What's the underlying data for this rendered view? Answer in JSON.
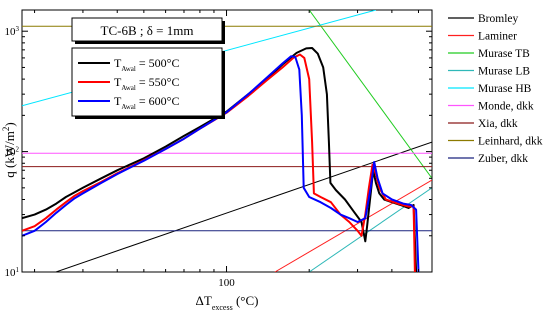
{
  "chart_data": {
    "type": "line",
    "xscale": "log",
    "yscale": "log",
    "xlim": [
      18,
      560
    ],
    "ylim": [
      10,
      1500
    ],
    "xlabel": "ΔT",
    "xlabel_sub": "excess",
    "xlabel_unit": " (°C)",
    "ylabel": "q (kW/m",
    "ylabel_sup": "2",
    "ylabel_close": ")",
    "x_ticks": [
      {
        "value": 100,
        "label": "100"
      }
    ],
    "y_ticks": [
      {
        "value": 10,
        "label": "10",
        "sup": "1"
      },
      {
        "value": 100,
        "label": "10",
        "sup": "2"
      },
      {
        "value": 1000,
        "label": "10",
        "sup": "3"
      }
    ],
    "title_box": "TC-6B ; δ = 1mm",
    "legend_inner": {
      "placement": "upper-left",
      "entries": [
        {
          "prefix": "T",
          "sub": "Awal",
          "suffix": " = 500°C",
          "color": "#000000"
        },
        {
          "prefix": "T",
          "sub": "Awal",
          "suffix": " = 550°C",
          "color": "#ff0000"
        },
        {
          "prefix": "T",
          "sub": "Awal",
          "suffix": " = 600°C",
          "color": "#0000ff"
        }
      ]
    },
    "legend_outer": [
      {
        "label": "Bromley",
        "color": "#000000"
      },
      {
        "label": "Laminer",
        "color": "#ff2020"
      },
      {
        "label": "Murase TB",
        "color": "#22cc22"
      },
      {
        "label": "Murase LB",
        "color": "#2fb8b8"
      },
      {
        "label": "Murase HB",
        "color": "#00e6ff"
      },
      {
        "label": "Monde, dkk",
        "color": "#ff55ff"
      },
      {
        "label": "Xia, dkk",
        "color": "#8b1a1a"
      },
      {
        "label": "Leinhard, dkk",
        "color": "#8c7a00"
      },
      {
        "label": "Zuber, dkk",
        "color": "#1a237e"
      }
    ],
    "correlations": [
      {
        "name": "Bromley",
        "color": "#000000",
        "points": [
          [
            18,
            8
          ],
          [
            560,
            120
          ]
        ]
      },
      {
        "name": "Laminer",
        "color": "#ff2020",
        "points": [
          [
            150,
            10
          ],
          [
            560,
            58
          ]
        ]
      },
      {
        "name": "Murase TB",
        "color": "#22cc22",
        "points": [
          [
            200,
            1500
          ],
          [
            560,
            60
          ]
        ]
      },
      {
        "name": "Murase LB",
        "color": "#2fb8b8",
        "points": [
          [
            200,
            10
          ],
          [
            560,
            50
          ]
        ]
      },
      {
        "name": "Murase HB",
        "color": "#00e6ff",
        "points": [
          [
            18,
            240
          ],
          [
            350,
            1500
          ]
        ]
      },
      {
        "name": "Monde, dkk",
        "color": "#ff55ff",
        "points": [
          [
            18,
            97
          ],
          [
            560,
            97
          ]
        ]
      },
      {
        "name": "Xia, dkk",
        "color": "#8b1a1a",
        "points": [
          [
            18,
            75
          ],
          [
            560,
            75
          ]
        ]
      },
      {
        "name": "Leinhard, dkk",
        "color": "#8c7a00",
        "points": [
          [
            18,
            1100
          ],
          [
            560,
            1100
          ]
        ]
      },
      {
        "name": "Zuber, dkk",
        "color": "#1a237e",
        "points": [
          [
            18,
            22
          ],
          [
            560,
            22
          ]
        ]
      }
    ],
    "series": [
      {
        "name": "T_Awal = 500°C",
        "color": "#000000",
        "points": [
          [
            18,
            28
          ],
          [
            20,
            30
          ],
          [
            22,
            33
          ],
          [
            24,
            37
          ],
          [
            26,
            42
          ],
          [
            28,
            46
          ],
          [
            30,
            50
          ],
          [
            35,
            60
          ],
          [
            40,
            70
          ],
          [
            50,
            88
          ],
          [
            60,
            110
          ],
          [
            70,
            135
          ],
          [
            80,
            160
          ],
          [
            100,
            215
          ],
          [
            120,
            300
          ],
          [
            140,
            400
          ],
          [
            160,
            530
          ],
          [
            180,
            660
          ],
          [
            195,
            720
          ],
          [
            205,
            725
          ],
          [
            215,
            650
          ],
          [
            225,
            500
          ],
          [
            232,
            300
          ],
          [
            236,
            120
          ],
          [
            239,
            55
          ],
          [
            250,
            48
          ],
          [
            270,
            40
          ],
          [
            290,
            32
          ],
          [
            310,
            26
          ],
          [
            320,
            18
          ],
          [
            325,
            24
          ],
          [
            335,
            45
          ],
          [
            342,
            70
          ],
          [
            350,
            55
          ],
          [
            360,
            45
          ],
          [
            375,
            40
          ],
          [
            400,
            38
          ],
          [
            430,
            36
          ],
          [
            460,
            34
          ],
          [
            480,
            36
          ],
          [
            490,
            10
          ]
        ]
      },
      {
        "name": "T_Awal = 550°C",
        "color": "#ff0000",
        "points": [
          [
            18,
            22
          ],
          [
            20,
            24
          ],
          [
            22,
            28
          ],
          [
            24,
            33
          ],
          [
            26,
            38
          ],
          [
            28,
            43
          ],
          [
            30,
            47
          ],
          [
            35,
            56
          ],
          [
            40,
            66
          ],
          [
            50,
            85
          ],
          [
            60,
            105
          ],
          [
            70,
            128
          ],
          [
            80,
            155
          ],
          [
            100,
            210
          ],
          [
            120,
            290
          ],
          [
            140,
            390
          ],
          [
            160,
            500
          ],
          [
            175,
            600
          ],
          [
            185,
            640
          ],
          [
            192,
            600
          ],
          [
            200,
            400
          ],
          [
            205,
            120
          ],
          [
            208,
            45
          ],
          [
            220,
            42
          ],
          [
            240,
            38
          ],
          [
            260,
            30
          ],
          [
            280,
            26
          ],
          [
            300,
            22
          ],
          [
            310,
            20
          ],
          [
            320,
            30
          ],
          [
            330,
            50
          ],
          [
            340,
            78
          ],
          [
            350,
            65
          ],
          [
            360,
            50
          ],
          [
            380,
            40
          ],
          [
            420,
            37
          ],
          [
            460,
            35
          ],
          [
            480,
            35
          ],
          [
            485,
            10
          ]
        ]
      },
      {
        "name": "T_Awal = 600°C",
        "color": "#0000ff",
        "points": [
          [
            18,
            20
          ],
          [
            20,
            22
          ],
          [
            22,
            26
          ],
          [
            24,
            31
          ],
          [
            26,
            36
          ],
          [
            28,
            41
          ],
          [
            30,
            45
          ],
          [
            35,
            55
          ],
          [
            40,
            65
          ],
          [
            50,
            84
          ],
          [
            60,
            105
          ],
          [
            70,
            128
          ],
          [
            80,
            155
          ],
          [
            100,
            212
          ],
          [
            120,
            300
          ],
          [
            140,
            410
          ],
          [
            160,
            540
          ],
          [
            172,
            620
          ],
          [
            178,
            610
          ],
          [
            184,
            480
          ],
          [
            188,
            200
          ],
          [
            191,
            50
          ],
          [
            200,
            42
          ],
          [
            220,
            38
          ],
          [
            240,
            34
          ],
          [
            260,
            30
          ],
          [
            280,
            28
          ],
          [
            300,
            26
          ],
          [
            320,
            28
          ],
          [
            335,
            50
          ],
          [
            345,
            82
          ],
          [
            355,
            60
          ],
          [
            370,
            45
          ],
          [
            400,
            40
          ],
          [
            440,
            37
          ],
          [
            470,
            36
          ],
          [
            490,
            33
          ],
          [
            500,
            10
          ]
        ]
      }
    ]
  }
}
